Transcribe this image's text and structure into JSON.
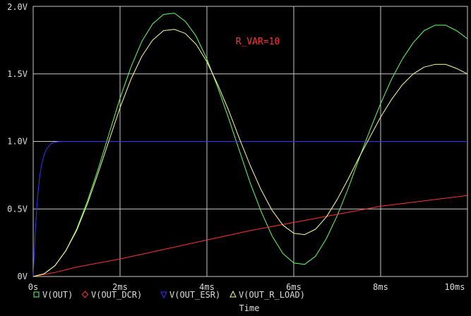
{
  "chart_data": {
    "type": "line",
    "title": "",
    "xlabel": "Time",
    "ylabel": "",
    "xlim": [
      0,
      10
    ],
    "ylim": [
      0,
      2.0
    ],
    "x_unit": "ms",
    "x_ticks": [
      0,
      2,
      4,
      6,
      8,
      10
    ],
    "x_tick_labels": [
      "0s",
      "2ms",
      "4ms",
      "6ms",
      "8ms",
      "10ms"
    ],
    "y_ticks": [
      0,
      0.5,
      1.0,
      1.5,
      2.0
    ],
    "y_tick_labels": [
      "0V",
      "0.5V",
      "1.0V",
      "1.5V",
      "2.0V"
    ],
    "grid": true,
    "legend_position": "bottom",
    "annotation": "R_VAR=10",
    "series": [
      {
        "name": "V(OUT)",
        "color": "#66ff66",
        "marker": "square",
        "x": [
          0,
          0.25,
          0.5,
          0.75,
          1.0,
          1.25,
          1.5,
          1.75,
          2.0,
          2.25,
          2.5,
          2.75,
          3.0,
          3.25,
          3.5,
          3.75,
          4.0,
          4.25,
          4.5,
          4.75,
          5.0,
          5.25,
          5.5,
          5.75,
          6.0,
          6.25,
          6.5,
          6.75,
          7.0,
          7.25,
          7.5,
          7.75,
          8.0,
          8.25,
          8.5,
          8.75,
          9.0,
          9.25,
          9.5,
          9.75,
          10.0
        ],
        "values": [
          0,
          0.02,
          0.08,
          0.19,
          0.35,
          0.56,
          0.8,
          1.06,
          1.32,
          1.55,
          1.74,
          1.87,
          1.94,
          1.95,
          1.89,
          1.78,
          1.61,
          1.4,
          1.17,
          0.93,
          0.69,
          0.48,
          0.3,
          0.17,
          0.1,
          0.09,
          0.15,
          0.28,
          0.45,
          0.65,
          0.87,
          1.08,
          1.28,
          1.46,
          1.61,
          1.73,
          1.82,
          1.86,
          1.86,
          1.82,
          1.76
        ]
      },
      {
        "name": "V(OUT_DCR)",
        "color": "#ff3333",
        "marker": "diamond",
        "x": [
          0,
          0.5,
          1.0,
          1.5,
          2.0,
          3.0,
          4.0,
          5.0,
          6.0,
          7.0,
          8.0,
          9.0,
          10.0
        ],
        "values": [
          0,
          0.03,
          0.07,
          0.1,
          0.13,
          0.2,
          0.27,
          0.34,
          0.4,
          0.46,
          0.52,
          0.56,
          0.6
        ]
      },
      {
        "name": "V(OUT_ESR)",
        "color": "#3333ff",
        "marker": "triangle-down",
        "x": [
          0,
          0.05,
          0.1,
          0.15,
          0.2,
          0.25,
          0.3,
          0.35,
          0.4,
          0.45,
          0.5,
          0.6,
          0.7,
          1.0,
          10.0
        ],
        "values": [
          0,
          0.35,
          0.58,
          0.74,
          0.84,
          0.9,
          0.94,
          0.96,
          0.98,
          0.99,
          0.995,
          0.999,
          1.0,
          1.0,
          1.0
        ]
      },
      {
        "name": "V(OUT_R_LOAD)",
        "color": "#ffff99",
        "marker": "triangle-up",
        "x": [
          0,
          0.25,
          0.5,
          0.75,
          1.0,
          1.25,
          1.5,
          1.75,
          2.0,
          2.25,
          2.5,
          2.75,
          3.0,
          3.25,
          3.5,
          3.75,
          4.0,
          4.25,
          4.5,
          4.75,
          5.0,
          5.25,
          5.5,
          5.75,
          6.0,
          6.25,
          6.5,
          6.75,
          7.0,
          7.25,
          7.5,
          7.75,
          8.0,
          8.25,
          8.5,
          8.75,
          9.0,
          9.25,
          9.5,
          9.75,
          10.0
        ],
        "values": [
          0,
          0.02,
          0.08,
          0.19,
          0.34,
          0.54,
          0.77,
          1.01,
          1.25,
          1.46,
          1.63,
          1.75,
          1.82,
          1.83,
          1.8,
          1.72,
          1.59,
          1.42,
          1.23,
          1.02,
          0.82,
          0.64,
          0.49,
          0.38,
          0.32,
          0.31,
          0.35,
          0.44,
          0.57,
          0.72,
          0.88,
          1.03,
          1.18,
          1.31,
          1.42,
          1.5,
          1.55,
          1.57,
          1.57,
          1.54,
          1.5
        ]
      }
    ]
  }
}
